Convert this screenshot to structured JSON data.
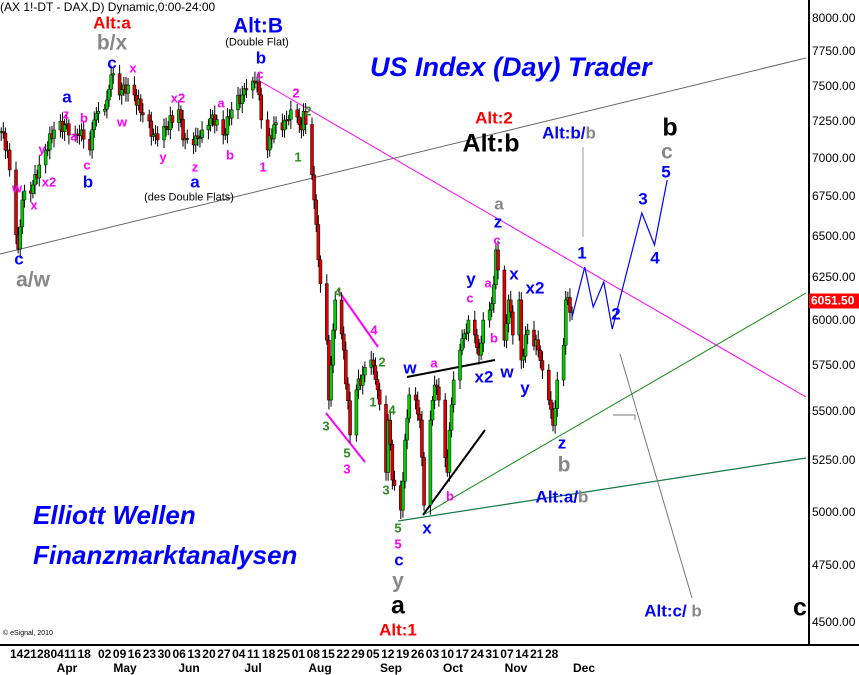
{
  "header": {
    "title": "(AX 1!-DT - DAX,D) Dynamic,0:00-24:00"
  },
  "watermark": {
    "title": "US Index (Day) Trader",
    "line1": "Elliott Wellen",
    "line2": "Finanzmarktanalysen"
  },
  "copyright": "© eSignal, 2010",
  "palette": {
    "red": "#ff0000",
    "blue": "#0000ff",
    "gray": "#888888",
    "magenta": "#ff00ff",
    "green": "#2e8b1e",
    "black": "#000000",
    "up": "#00cc00",
    "down": "#dd0000"
  },
  "chart_data": {
    "type": "candlestick",
    "scale": "log",
    "ylim": [
      4500,
      8000
    ],
    "yticks": [
      "8000.00",
      "7750.00",
      "7500.00",
      "7250.00",
      "7000.00",
      "6750.00",
      "6500.00",
      "6250.00",
      "6000.00",
      "5750.00",
      "5500.00",
      "5250.00",
      "5000.00",
      "4750.00",
      "4500.00"
    ],
    "last_price": "6051.50",
    "x_day_labels": [
      "14",
      "21",
      "28",
      "04",
      "11",
      "18",
      "02",
      "09",
      "16",
      "23",
      "30",
      "06",
      "13",
      "20",
      "27",
      "04",
      "11",
      "18",
      "25",
      "01",
      "08",
      "15",
      "22",
      "29",
      "05",
      "12",
      "19",
      "26",
      "03",
      "10",
      "17",
      "24",
      "31",
      "07",
      "14",
      "21",
      "28"
    ],
    "x_month_labels": [
      "Apr",
      "May",
      "Jun",
      "Jul",
      "Aug",
      "Sep",
      "Oct",
      "Nov",
      "Dec"
    ],
    "price_path": [
      [
        "2011-03-07",
        7180
      ],
      [
        "2011-03-10",
        7055
      ],
      [
        "2011-03-11",
        6922
      ],
      [
        "2011-03-15",
        6420
      ],
      [
        "2011-03-17",
        6727
      ],
      [
        "2011-03-22",
        6824
      ],
      [
        "2011-03-25",
        6955
      ],
      [
        "2011-03-28",
        7055
      ],
      [
        "2011-04-01",
        7191
      ],
      [
        "2011-04-06",
        7226
      ],
      [
        "2011-04-11",
        7157
      ],
      [
        "2011-04-14",
        7191
      ],
      [
        "2011-04-18",
        7055
      ],
      [
        "2011-04-20",
        7260
      ],
      [
        "2011-04-26",
        7399
      ],
      [
        "2011-04-28",
        7578
      ],
      [
        "2011-05-02",
        7434
      ],
      [
        "2011-05-04",
        7506
      ],
      [
        "2011-05-09",
        7434
      ],
      [
        "2011-05-13",
        7295
      ],
      [
        "2011-05-18",
        7157
      ],
      [
        "2011-05-20",
        7123
      ],
      [
        "2011-05-30",
        7330
      ],
      [
        "2011-06-01",
        7123
      ],
      [
        "2011-06-06",
        7089
      ],
      [
        "2011-06-10",
        7191
      ],
      [
        "2011-06-15",
        7295
      ],
      [
        "2011-06-20",
        7157
      ],
      [
        "2011-06-24",
        7330
      ],
      [
        "2011-07-01",
        7470
      ],
      [
        "2011-07-06",
        7527
      ],
      [
        "2011-07-08",
        7260
      ],
      [
        "2011-07-11",
        7055
      ],
      [
        "2011-07-14",
        7226
      ],
      [
        "2011-07-18",
        7191
      ],
      [
        "2011-07-22",
        7330
      ],
      [
        "2011-07-25",
        7280
      ],
      [
        "2011-07-27",
        7191
      ],
      [
        "2011-07-28",
        7320
      ],
      [
        "2011-08-01",
        6890
      ],
      [
        "2011-08-02",
        6727
      ],
      [
        "2011-08-04",
        6354
      ],
      [
        "2011-08-08",
        5886
      ],
      [
        "2011-08-09",
        5560
      ],
      [
        "2011-08-11",
        5943
      ],
      [
        "2011-08-12",
        6116
      ],
      [
        "2011-08-16",
        5831
      ],
      [
        "2011-08-19",
        5378
      ],
      [
        "2011-08-22",
        5614
      ],
      [
        "2011-08-25",
        5694
      ],
      [
        "2011-08-29",
        5776
      ],
      [
        "2011-09-01",
        5614
      ],
      [
        "2011-09-05",
        5190
      ],
      [
        "2011-09-06",
        5455
      ],
      [
        "2011-09-08",
        5152
      ],
      [
        "2011-09-12",
        5007
      ],
      [
        "2011-09-14",
        5352
      ],
      [
        "2011-09-16",
        5587
      ],
      [
        "2011-09-19",
        5560
      ],
      [
        "2011-09-21",
        5455
      ],
      [
        "2011-09-23",
        5030
      ],
      [
        "2011-09-26",
        5455
      ],
      [
        "2011-09-28",
        5640
      ],
      [
        "2011-09-30",
        5560
      ],
      [
        "2011-10-04",
        5190
      ],
      [
        "2011-10-05",
        5403
      ],
      [
        "2011-10-07",
        5667
      ],
      [
        "2011-10-10",
        5831
      ],
      [
        "2011-10-14",
        6000
      ],
      [
        "2011-10-17",
        5915
      ],
      [
        "2011-10-19",
        5803
      ],
      [
        "2011-10-21",
        6000
      ],
      [
        "2011-10-24",
        6058
      ],
      [
        "2011-10-26",
        6205
      ],
      [
        "2011-10-27",
        6414
      ],
      [
        "2011-10-28",
        6293
      ],
      [
        "2011-10-31",
        5886
      ],
      [
        "2011-11-02",
        6116
      ],
      [
        "2011-11-04",
        5915
      ],
      [
        "2011-11-07",
        6116
      ],
      [
        "2011-11-08",
        5776
      ],
      [
        "2011-11-11",
        5943
      ],
      [
        "2011-11-16",
        5831
      ],
      [
        "2011-11-18",
        5721
      ],
      [
        "2011-11-21",
        5560
      ],
      [
        "2011-11-23",
        5428
      ],
      [
        "2011-11-25",
        5667
      ],
      [
        "2011-11-28",
        5858
      ],
      [
        "2011-11-29",
        6116
      ],
      [
        "2011-12-02",
        6051.5
      ]
    ],
    "projection": [
      [
        "2011-12-02",
        6018
      ],
      [
        "2011-12-08",
        6311
      ],
      [
        "2011-12-12",
        6075
      ],
      [
        "2011-12-17",
        6222
      ],
      [
        "2011-12-21",
        5949
      ],
      [
        "2012-01-04",
        6644
      ],
      [
        "2012-01-10",
        6445
      ],
      [
        "2012-01-16",
        6856
      ]
    ]
  },
  "labels": [
    {
      "text": "Alt:a",
      "color": "red"
    },
    {
      "text": "b/x",
      "color": "gray"
    },
    {
      "text": "c",
      "color": "blue"
    },
    {
      "text": "x",
      "color": "magenta"
    },
    {
      "text": "Alt:B",
      "color": "blue"
    },
    {
      "text": "(Double Flat)",
      "color": "black"
    },
    {
      "text": "b",
      "color": "blue"
    },
    {
      "text": "c",
      "color": "magenta"
    },
    {
      "text": "a",
      "color": "blue"
    },
    {
      "text": "z",
      "color": "magenta"
    },
    {
      "text": "b",
      "color": "magenta"
    },
    {
      "text": "a",
      "color": "magenta"
    },
    {
      "text": "y",
      "color": "magenta"
    },
    {
      "text": "c",
      "color": "magenta"
    },
    {
      "text": "b",
      "color": "blue"
    },
    {
      "text": "w",
      "color": "magenta"
    },
    {
      "text": "x2",
      "color": "magenta"
    },
    {
      "text": "x",
      "color": "magenta"
    },
    {
      "text": "c",
      "color": "blue"
    },
    {
      "text": "a/w",
      "color": "gray"
    },
    {
      "text": "w",
      "color": "magenta"
    },
    {
      "text": "x2",
      "color": "magenta"
    },
    {
      "text": "a",
      "color": "magenta"
    },
    {
      "text": "y",
      "color": "magenta"
    },
    {
      "text": "z",
      "color": "magenta"
    },
    {
      "text": "a",
      "color": "blue"
    },
    {
      "text": "b",
      "color": "magenta"
    },
    {
      "text": "1",
      "color": "magenta"
    },
    {
      "text": "2",
      "color": "magenta"
    },
    {
      "text": "2",
      "color": "green"
    },
    {
      "text": "1",
      "color": "green"
    },
    {
      "text": "(des Double Flats)",
      "color": "black"
    },
    {
      "text": "Alt:2",
      "color": "red"
    },
    {
      "text": "Alt:b",
      "color": "black"
    },
    {
      "text": "a",
      "color": "gray"
    },
    {
      "text": "z",
      "color": "blue"
    },
    {
      "text": "c",
      "color": "magenta"
    },
    {
      "text": "y",
      "color": "blue"
    },
    {
      "text": "a",
      "color": "magenta"
    },
    {
      "text": "x",
      "color": "blue"
    },
    {
      "text": "x2",
      "color": "blue"
    },
    {
      "text": "c",
      "color": "magenta"
    },
    {
      "text": "b",
      "color": "magenta"
    },
    {
      "text": "w",
      "color": "blue"
    },
    {
      "text": "a",
      "color": "magenta"
    },
    {
      "text": "x2",
      "color": "blue"
    },
    {
      "text": "w",
      "color": "blue"
    },
    {
      "text": "y",
      "color": "blue"
    },
    {
      "text": "4",
      "color": "green"
    },
    {
      "text": "4",
      "color": "magenta"
    },
    {
      "text": "2",
      "color": "green"
    },
    {
      "text": "1",
      "color": "green"
    },
    {
      "text": "4",
      "color": "green"
    },
    {
      "text": "3",
      "color": "green"
    },
    {
      "text": "5",
      "color": "green"
    },
    {
      "text": "3",
      "color": "magenta"
    },
    {
      "text": "3",
      "color": "green"
    },
    {
      "text": "b",
      "color": "magenta"
    },
    {
      "text": "z",
      "color": "blue"
    },
    {
      "text": "b",
      "color": "gray"
    },
    {
      "text": "5",
      "color": "green"
    },
    {
      "text": "x",
      "color": "blue"
    },
    {
      "text": "5",
      "color": "magenta"
    },
    {
      "text": "c",
      "color": "blue"
    },
    {
      "text": "y",
      "color": "gray"
    },
    {
      "text": "a",
      "color": "black"
    },
    {
      "text": "Alt:1",
      "color": "red"
    },
    {
      "text": "1",
      "color": "blue"
    },
    {
      "text": "2",
      "color": "blue"
    },
    {
      "text": "3",
      "color": "blue"
    },
    {
      "text": "4",
      "color": "blue"
    },
    {
      "text": "5",
      "color": "blue"
    },
    {
      "text": "c",
      "color": "gray"
    },
    {
      "text": "b",
      "color": "black"
    },
    {
      "text": "c",
      "color": "black"
    }
  ],
  "compound_labels": [
    {
      "a": "Alt:b/",
      "a_color": "blue",
      "b": "b",
      "b_color": "gray"
    },
    {
      "a": "Alt:a/",
      "a_color": "blue",
      "b": "b",
      "b_color": "gray"
    },
    {
      "a": "Alt:c/",
      "a_color": "blue",
      "b": " b",
      "b_color": "gray"
    }
  ]
}
